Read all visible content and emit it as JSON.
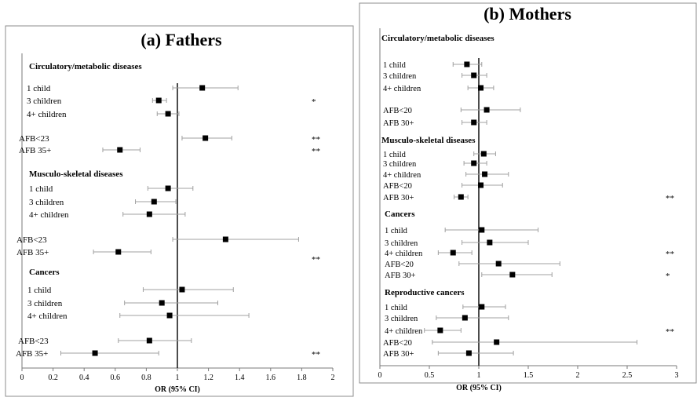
{
  "chart_data": [
    {
      "panel": "fathers",
      "type": "forest",
      "title": "(a) Fathers",
      "xlabel": "OR (95% CI)",
      "xlim": [
        0,
        2
      ],
      "xticks": [
        "0",
        "0.2",
        "0.4",
        "0.6",
        "0.8",
        "1",
        "1.2",
        "1.4",
        "1.6",
        "1.8",
        "2"
      ],
      "reference_line": 1,
      "rows": [
        {
          "kind": "header",
          "label": "Circulatory/metabolic diseases"
        },
        {
          "kind": "item",
          "label": "1 child",
          "or": 1.16,
          "lo": 0.97,
          "hi": 1.39,
          "sig": ""
        },
        {
          "kind": "item",
          "label": "3 children",
          "or": 0.88,
          "lo": 0.84,
          "hi": 0.93,
          "sig": "*"
        },
        {
          "kind": "item",
          "label": "4+ children",
          "or": 0.94,
          "lo": 0.87,
          "hi": 1.01,
          "sig": ""
        },
        {
          "kind": "item",
          "label": "AFB<23",
          "or": 1.18,
          "lo": 1.03,
          "hi": 1.35,
          "sig": "**"
        },
        {
          "kind": "item",
          "label": "AFB 35+",
          "or": 0.63,
          "lo": 0.52,
          "hi": 0.76,
          "sig": "**"
        },
        {
          "kind": "header",
          "label": "Musculo-skeletal diseases"
        },
        {
          "kind": "item",
          "label": "1 child",
          "or": 0.94,
          "lo": 0.81,
          "hi": 1.1,
          "sig": ""
        },
        {
          "kind": "item",
          "label": "3 children",
          "or": 0.85,
          "lo": 0.73,
          "hi": 0.99,
          "sig": ""
        },
        {
          "kind": "item",
          "label": "4+ children",
          "or": 0.82,
          "lo": 0.65,
          "hi": 1.05,
          "sig": ""
        },
        {
          "kind": "item",
          "label": "AFB<23",
          "or": 1.31,
          "lo": 0.97,
          "hi": 1.78,
          "sig": ""
        },
        {
          "kind": "item",
          "label": "AFB 35+",
          "or": 0.62,
          "lo": 0.46,
          "hi": 0.83,
          "sig": "**"
        },
        {
          "kind": "header",
          "label": "Cancers"
        },
        {
          "kind": "item",
          "label": "1 child",
          "or": 1.03,
          "lo": 0.78,
          "hi": 1.36,
          "sig": ""
        },
        {
          "kind": "item",
          "label": "3 children",
          "or": 0.9,
          "lo": 0.66,
          "hi": 1.26,
          "sig": ""
        },
        {
          "kind": "item",
          "label": "4+ children",
          "or": 0.95,
          "lo": 0.63,
          "hi": 1.46,
          "sig": ""
        },
        {
          "kind": "item",
          "label": "AFB<23",
          "or": 0.82,
          "lo": 0.62,
          "hi": 1.09,
          "sig": ""
        },
        {
          "kind": "item",
          "label": "AFB 35+",
          "or": 0.47,
          "lo": 0.25,
          "hi": 0.88,
          "sig": "**"
        }
      ]
    },
    {
      "panel": "mothers",
      "type": "forest",
      "title": "(b) Mothers",
      "xlabel": "OR (95% CI)",
      "xlim": [
        0,
        3
      ],
      "xticks": [
        "0",
        "0.5",
        "1",
        "1.5",
        "2",
        "2.5",
        "3"
      ],
      "reference_line": 1,
      "rows": [
        {
          "kind": "header",
          "label": "Circulatory/metabolic diseases"
        },
        {
          "kind": "item",
          "label": "1 child",
          "or": 0.88,
          "lo": 0.74,
          "hi": 1.03,
          "sig": ""
        },
        {
          "kind": "item",
          "label": "3 children",
          "or": 0.95,
          "lo": 0.83,
          "hi": 1.08,
          "sig": ""
        },
        {
          "kind": "item",
          "label": "4+ children",
          "or": 1.02,
          "lo": 0.89,
          "hi": 1.15,
          "sig": ""
        },
        {
          "kind": "item",
          "label": "AFB<20",
          "or": 1.08,
          "lo": 0.82,
          "hi": 1.42,
          "sig": ""
        },
        {
          "kind": "item",
          "label": "AFB 30+",
          "or": 0.95,
          "lo": 0.83,
          "hi": 1.08,
          "sig": ""
        },
        {
          "kind": "header",
          "label": "Musculo-skeletal diseases"
        },
        {
          "kind": "item",
          "label": "1 child",
          "or": 1.05,
          "lo": 0.95,
          "hi": 1.17,
          "sig": ""
        },
        {
          "kind": "item",
          "label": "3 children",
          "or": 0.95,
          "lo": 0.85,
          "hi": 1.08,
          "sig": ""
        },
        {
          "kind": "item",
          "label": "4+ children",
          "or": 1.06,
          "lo": 0.87,
          "hi": 1.3,
          "sig": ""
        },
        {
          "kind": "item",
          "label": "AFB<20",
          "or": 1.02,
          "lo": 0.83,
          "hi": 1.24,
          "sig": ""
        },
        {
          "kind": "item",
          "label": "AFB 30+",
          "or": 0.82,
          "lo": 0.75,
          "hi": 0.89,
          "sig": "**"
        },
        {
          "kind": "header",
          "label": "Cancers"
        },
        {
          "kind": "item",
          "label": "1 child",
          "or": 1.03,
          "lo": 0.66,
          "hi": 1.6,
          "sig": ""
        },
        {
          "kind": "item",
          "label": "3 children",
          "or": 1.11,
          "lo": 0.83,
          "hi": 1.5,
          "sig": ""
        },
        {
          "kind": "item",
          "label": "4+ children",
          "or": 0.74,
          "lo": 0.59,
          "hi": 0.93,
          "sig": "**"
        },
        {
          "kind": "item",
          "label": "AFB<20",
          "or": 1.2,
          "lo": 0.8,
          "hi": 1.82,
          "sig": ""
        },
        {
          "kind": "item",
          "label": "AFB 30+",
          "or": 1.34,
          "lo": 1.03,
          "hi": 1.74,
          "sig": "*"
        },
        {
          "kind": "header",
          "label": "Reproductive cancers"
        },
        {
          "kind": "item",
          "label": "1 child",
          "or": 1.03,
          "lo": 0.84,
          "hi": 1.27,
          "sig": ""
        },
        {
          "kind": "item",
          "label": "3 children",
          "or": 0.86,
          "lo": 0.57,
          "hi": 1.3,
          "sig": ""
        },
        {
          "kind": "item",
          "label": "4+ children",
          "or": 0.61,
          "lo": 0.45,
          "hi": 0.82,
          "sig": "**"
        },
        {
          "kind": "item",
          "label": "AFB<20",
          "or": 1.18,
          "lo": 0.53,
          "hi": 2.6,
          "sig": ""
        },
        {
          "kind": "item",
          "label": "AFB 30+",
          "or": 0.9,
          "lo": 0.59,
          "hi": 1.35,
          "sig": ""
        }
      ]
    }
  ],
  "colors": {
    "frame": "#8c8c8c",
    "axis": "#7a7a7a",
    "ci_line": "#a0a0a0",
    "marker": "#000000",
    "reference_line": "#000000"
  }
}
